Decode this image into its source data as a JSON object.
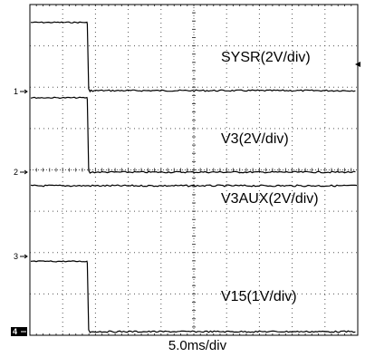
{
  "chart_data": {
    "type": "line",
    "grid": true,
    "divisions": {
      "x": 10,
      "y": 8
    },
    "timebase": "5.0ms/div",
    "series": [
      {
        "name": "SYSR(2V/div)",
        "channel": "1",
        "high_div": 1.65,
        "step_div": 1.75
      },
      {
        "name": "V3(2V/div)",
        "channel": "2",
        "high_div": 1.8,
        "step_div": 1.75
      },
      {
        "name": "V3AUX(2V/div)",
        "channel": "3",
        "high_div": -0.4,
        "step_div": null
      },
      {
        "name": "V15(1V/div)",
        "channel": "4",
        "high_div": 1.7,
        "step_div": 1.75
      }
    ]
  }
}
